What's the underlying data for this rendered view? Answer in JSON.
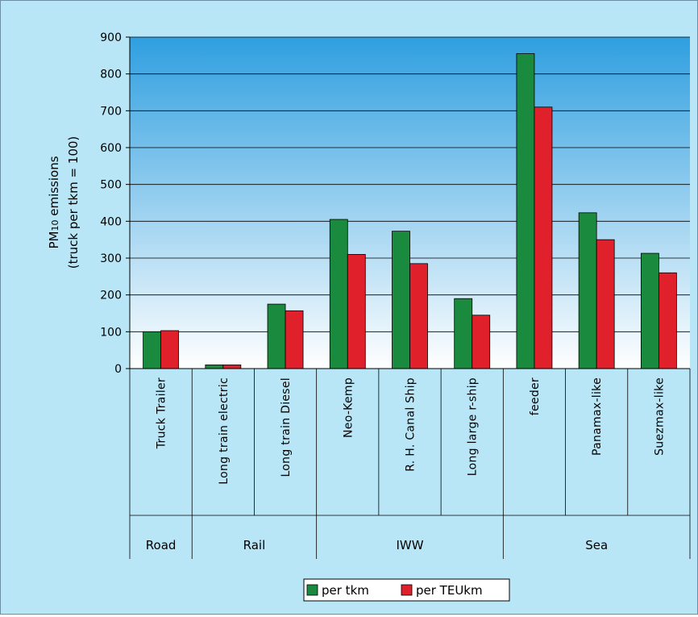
{
  "chart_data": {
    "type": "bar",
    "ylabel_line1_main": "PM",
    "ylabel_line1_sub": "10",
    "ylabel_line1_rest": " emissions",
    "ylabel_line2": "(truck per tkm = 100)",
    "ylim": [
      0,
      900
    ],
    "yticks": [
      0,
      100,
      200,
      300,
      400,
      500,
      600,
      700,
      800,
      900
    ],
    "grid": true,
    "legend_position": "bottom-center",
    "categories": [
      "Truck Trailer",
      "Long train electric",
      "Long train Diesel",
      "Neo-Kemp",
      "R. H. Canal Ship",
      "Long large r-ship",
      "feeder",
      "Panamax-like",
      "Suezmax-like"
    ],
    "groups": [
      {
        "label": "Road",
        "span": 1
      },
      {
        "label": "Rail",
        "span": 2
      },
      {
        "label": "IWW",
        "span": 3
      },
      {
        "label": "Sea",
        "span": 3
      }
    ],
    "series": [
      {
        "name": "per tkm",
        "color": "#1a8a3e",
        "values": [
          100,
          10,
          175,
          405,
          373,
          190,
          855,
          423,
          313
        ]
      },
      {
        "name": "per TEUkm",
        "color": "#e0202a",
        "values": [
          103,
          10,
          157,
          310,
          285,
          145,
          710,
          350,
          260
        ]
      }
    ],
    "plot_gradient": [
      "#2f9fe0",
      "#ffffff"
    ]
  }
}
